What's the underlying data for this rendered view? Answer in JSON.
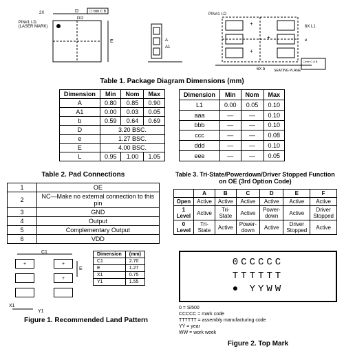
{
  "diagrams": {
    "pin_label": "PIN#1 I.D.\n(LASER MARK)",
    "seating": "SEATING PLANE",
    "d2_label": "D/2",
    "callouts_left": [
      "2X",
      "A"
    ],
    "callouts_right": [
      "6X L1",
      "6X b"
    ]
  },
  "table1": {
    "title": "Table 1. Package Diagram Dimensions (mm)",
    "headers": [
      "Dimension",
      "Min",
      "Nom",
      "Max"
    ],
    "left_rows": [
      [
        "A",
        "0.80",
        "0.85",
        "0.90"
      ],
      [
        "A1",
        "0.00",
        "0.03",
        "0.05"
      ],
      [
        "b",
        "0.59",
        "0.64",
        "0.69"
      ],
      [
        "D",
        "3.20 BSC.",
        "",
        ""
      ],
      [
        "e",
        "1.27 BSC.",
        "",
        ""
      ],
      [
        "E",
        "4.00 BSC.",
        "",
        ""
      ],
      [
        "L",
        "0.95",
        "1.00",
        "1.05"
      ]
    ],
    "right_rows": [
      [
        "L1",
        "0.00",
        "0.05",
        "0.10"
      ],
      [
        "aaa",
        "—",
        "—",
        "0.10"
      ],
      [
        "bbb",
        "—",
        "—",
        "0.10"
      ],
      [
        "ccc",
        "—",
        "—",
        "0.08"
      ],
      [
        "ddd",
        "—",
        "—",
        "0.10"
      ],
      [
        "eee",
        "—",
        "—",
        "0.05"
      ]
    ]
  },
  "table2": {
    "title": "Table 2. Pad Connections",
    "rows": [
      [
        "1",
        "OE"
      ],
      [
        "2",
        "NC—Make no external connection to this pin"
      ],
      [
        "3",
        "GND"
      ],
      [
        "4",
        "Output"
      ],
      [
        "5",
        "Complementary Output"
      ],
      [
        "6",
        "VDD"
      ]
    ]
  },
  "table3": {
    "title": "Table 3. Tri-State/Powerdown/Driver Stopped Function on OE (3rd Option Code)",
    "col_headers": [
      "",
      "A",
      "B",
      "C",
      "D",
      "E",
      "F"
    ],
    "rows": [
      [
        "Open",
        "Active",
        "Active",
        "Active",
        "Active",
        "Active",
        "Active"
      ],
      [
        "1 Level",
        "Active",
        "Tri-State",
        "Active",
        "Power-down",
        "Active",
        "Driver Stopped"
      ],
      [
        "0 Level",
        "Tri-State",
        "Active",
        "Power-down",
        "Active",
        "Driver Stopped",
        "Active"
      ]
    ]
  },
  "figure1": {
    "title": "Figure 1. Recommended Land Pattern",
    "dim_headers": [
      "Dimension",
      "(mm)"
    ],
    "dims": [
      [
        "C1",
        "2.70"
      ],
      [
        "E",
        "1.27"
      ],
      [
        "X1",
        "0.75"
      ],
      [
        "Y1",
        "1.55"
      ]
    ],
    "labels": [
      "C1",
      "E",
      "X1",
      "Y1"
    ]
  },
  "figure2": {
    "title": "Figure 2. Top Mark",
    "lines": [
      "0CCCCC",
      "TTTTTT",
      "● YYWW"
    ],
    "notes": [
      "0 = Si500",
      "CCCCC = mark code",
      "TTTTTT = assembly manufacturing code",
      "YY = year",
      "WW = work week"
    ]
  }
}
